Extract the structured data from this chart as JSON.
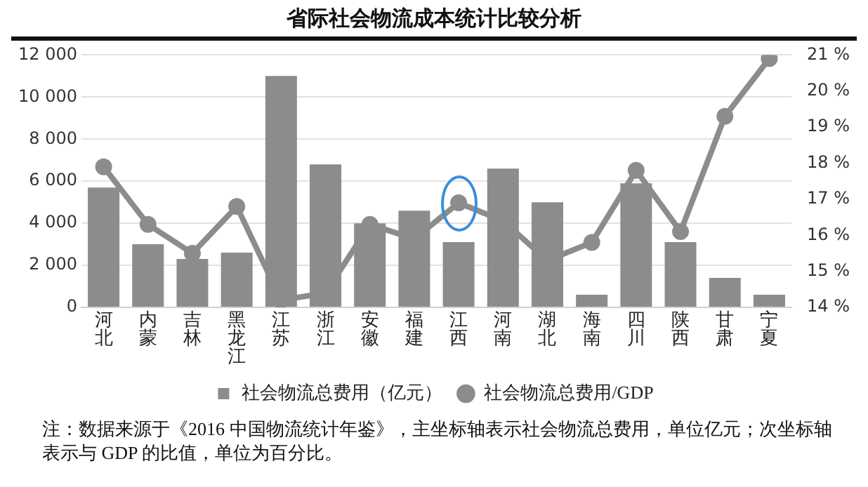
{
  "chart_data": {
    "type": "bar",
    "title": "省际社会物流成本统计比较分析",
    "categories": [
      "河北",
      "内蒙",
      "吉林",
      "黑龙江",
      "江苏",
      "浙江",
      "安徽",
      "福建",
      "江西",
      "河南",
      "湖北",
      "海南",
      "四川",
      "陕西",
      "甘肃",
      "宁夏"
    ],
    "series": [
      {
        "name": "社会物流总费用（亿元）",
        "color": "#8c8c8c",
        "values": [
          5700,
          3000,
          2300,
          2600,
          11000,
          6800,
          4000,
          4600,
          3100,
          6600,
          5000,
          600,
          5900,
          3100,
          1400,
          600
        ]
      },
      {
        "name": "社会物流总费用/GDP",
        "type": "line",
        "axis": "y2",
        "color": "#8c8c8c",
        "marker": "circle",
        "values": [
          17.9,
          16.3,
          15.5,
          16.8,
          14.2,
          14.4,
          16.3,
          15.9,
          16.9,
          16.4,
          15.3,
          15.8,
          17.8,
          16.1,
          19.3,
          20.9
        ]
      }
    ],
    "ylim": [
      0,
      12000
    ],
    "yticks": [
      {
        "value": 0,
        "label": "0"
      },
      {
        "value": 2000,
        "label": "2 000"
      },
      {
        "value": 4000,
        "label": "4 000"
      },
      {
        "value": 6000,
        "label": "6 000"
      },
      {
        "value": 8000,
        "label": "8 000"
      },
      {
        "value": 10000,
        "label": "10 000"
      },
      {
        "value": 12000,
        "label": "12 000"
      }
    ],
    "y2lim": [
      14,
      21
    ],
    "y2ticks": [
      {
        "value": 14,
        "label": "14 %"
      },
      {
        "value": 15,
        "label": "15 %"
      },
      {
        "value": 16,
        "label": "16 %"
      },
      {
        "value": 17,
        "label": "17 %"
      },
      {
        "value": 18,
        "label": "18 %"
      },
      {
        "value": 19,
        "label": "19 %"
      },
      {
        "value": 20,
        "label": "20 %"
      },
      {
        "value": 21,
        "label": "21 %"
      }
    ],
    "grid": "y",
    "legend": "bottom",
    "annotations": [
      "注：数据来源于《2016 中国物流统计年鉴》，主坐标轴表示社会物流总费用，单位亿元；次坐标轴表示与 GDP 的比值，单位为百分比。"
    ]
  }
}
